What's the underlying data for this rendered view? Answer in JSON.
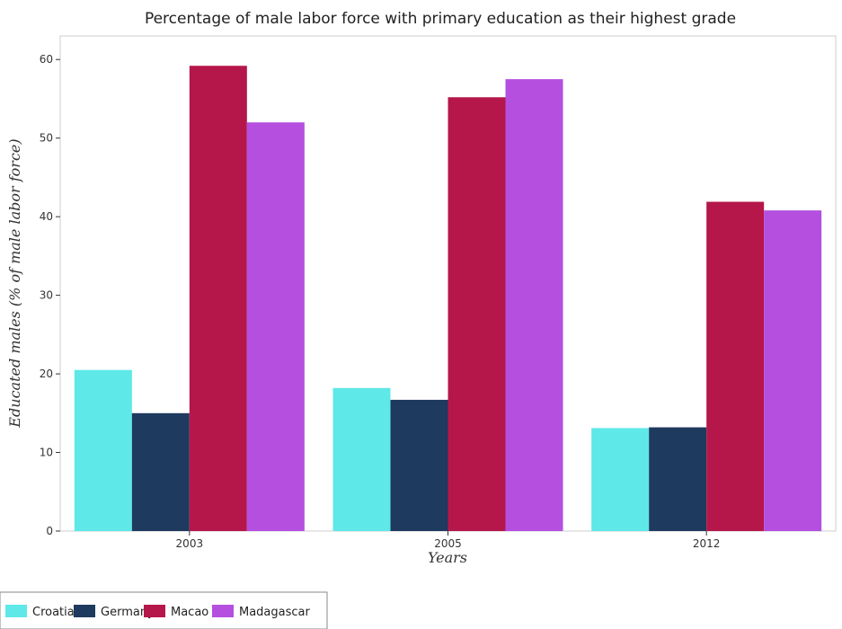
{
  "chart_data": {
    "type": "bar",
    "title": "Percentage of male labor force with primary education as their highest grade",
    "xlabel": "Years",
    "ylabel": "Educated males (% of male labor force)",
    "categories": [
      "2003",
      "2005",
      "2012"
    ],
    "ylim": [
      0,
      63
    ],
    "yticks": [
      0,
      10,
      20,
      30,
      40,
      50,
      60
    ],
    "grid": false,
    "legend_position": "bottom-left",
    "series": [
      {
        "name": "Croatia",
        "color": "#5ee8e8",
        "values": [
          20.5,
          18.2,
          13.1
        ]
      },
      {
        "name": "Germany",
        "color": "#1f3a5f",
        "values": [
          15.0,
          16.7,
          13.2
        ]
      },
      {
        "name": "Macao",
        "color": "#b5174a",
        "values": [
          59.2,
          55.2,
          41.9
        ]
      },
      {
        "name": "Madagascar",
        "color": "#b44fe0",
        "values": [
          52.0,
          57.5,
          40.8
        ]
      }
    ]
  }
}
